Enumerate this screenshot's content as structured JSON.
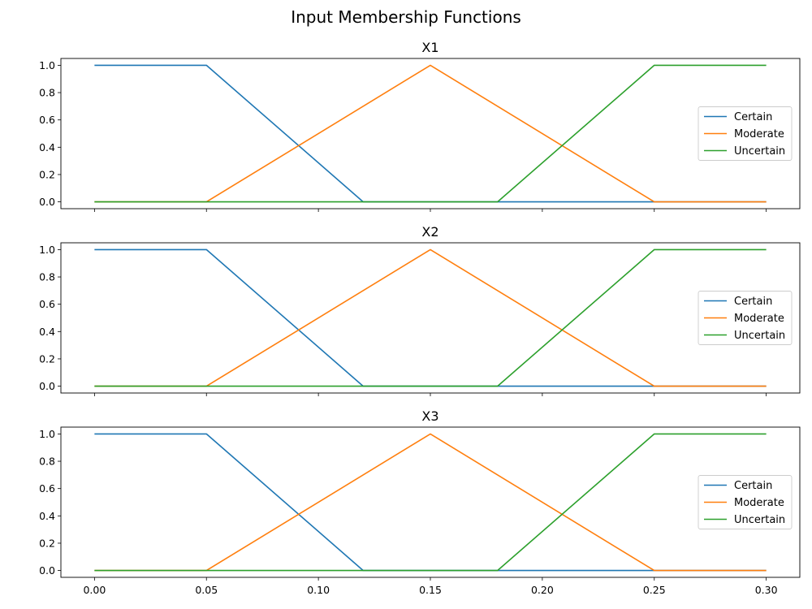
{
  "figure": {
    "title": "Input Membership Functions"
  },
  "legend": {
    "entries": [
      "Certain",
      "Moderate",
      "Uncertain"
    ]
  },
  "colors": {
    "Certain": "#1f77b4",
    "Moderate": "#ff7f0e",
    "Uncertain": "#2ca02c"
  },
  "chart_data": [
    {
      "type": "line",
      "title": "X1",
      "xlabel": "",
      "ylabel": "",
      "xlim": [
        -0.015,
        0.315
      ],
      "ylim": [
        -0.05,
        1.05
      ],
      "xticks": [
        "0.00",
        "0.05",
        "0.10",
        "0.15",
        "0.20",
        "0.25",
        "0.30"
      ],
      "yticks": [
        "0.0",
        "0.2",
        "0.4",
        "0.6",
        "0.8",
        "1.0"
      ],
      "show_xtick_labels": false,
      "legend_position": "center-right",
      "series": [
        {
          "name": "Certain",
          "x": [
            0.0,
            0.05,
            0.12,
            0.3
          ],
          "y": [
            1,
            1,
            0,
            0
          ]
        },
        {
          "name": "Moderate",
          "x": [
            0.0,
            0.05,
            0.15,
            0.25,
            0.3
          ],
          "y": [
            0,
            0,
            1,
            0,
            0
          ]
        },
        {
          "name": "Uncertain",
          "x": [
            0.0,
            0.18,
            0.25,
            0.3
          ],
          "y": [
            0,
            0,
            1,
            1
          ]
        }
      ]
    },
    {
      "type": "line",
      "title": "X2",
      "xlabel": "",
      "ylabel": "",
      "xlim": [
        -0.015,
        0.315
      ],
      "ylim": [
        -0.05,
        1.05
      ],
      "xticks": [
        "0.00",
        "0.05",
        "0.10",
        "0.15",
        "0.20",
        "0.25",
        "0.30"
      ],
      "yticks": [
        "0.0",
        "0.2",
        "0.4",
        "0.6",
        "0.8",
        "1.0"
      ],
      "show_xtick_labels": false,
      "legend_position": "center-right",
      "series": [
        {
          "name": "Certain",
          "x": [
            0.0,
            0.05,
            0.12,
            0.3
          ],
          "y": [
            1,
            1,
            0,
            0
          ]
        },
        {
          "name": "Moderate",
          "x": [
            0.0,
            0.05,
            0.15,
            0.25,
            0.3
          ],
          "y": [
            0,
            0,
            1,
            0,
            0
          ]
        },
        {
          "name": "Uncertain",
          "x": [
            0.0,
            0.18,
            0.25,
            0.3
          ],
          "y": [
            0,
            0,
            1,
            1
          ]
        }
      ]
    },
    {
      "type": "line",
      "title": "X3",
      "xlabel": "",
      "ylabel": "",
      "xlim": [
        -0.015,
        0.315
      ],
      "ylim": [
        -0.05,
        1.05
      ],
      "xticks": [
        "0.00",
        "0.05",
        "0.10",
        "0.15",
        "0.20",
        "0.25",
        "0.30"
      ],
      "yticks": [
        "0.0",
        "0.2",
        "0.4",
        "0.6",
        "0.8",
        "1.0"
      ],
      "show_xtick_labels": true,
      "legend_position": "center-right",
      "series": [
        {
          "name": "Certain",
          "x": [
            0.0,
            0.05,
            0.12,
            0.3
          ],
          "y": [
            1,
            1,
            0,
            0
          ]
        },
        {
          "name": "Moderate",
          "x": [
            0.0,
            0.05,
            0.15,
            0.25,
            0.3
          ],
          "y": [
            0,
            0,
            1,
            0,
            0
          ]
        },
        {
          "name": "Uncertain",
          "x": [
            0.0,
            0.18,
            0.25,
            0.3
          ],
          "y": [
            0,
            0,
            1,
            1
          ]
        }
      ]
    }
  ]
}
